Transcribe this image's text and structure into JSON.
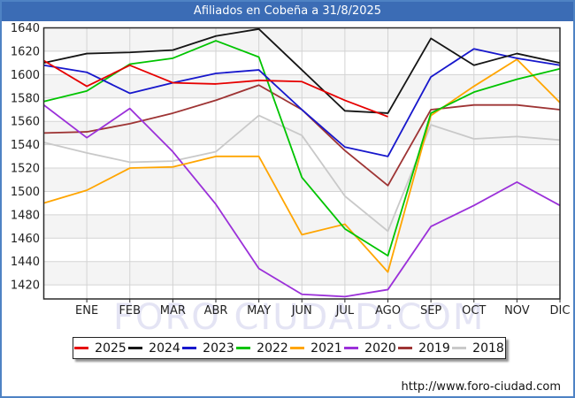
{
  "window": {
    "title": "Afiliados en Cobeña a 31/8/2025"
  },
  "watermark_text": "FORO CIUDAD.COM",
  "footer": {
    "url": "http://www.foro-ciudad.com"
  },
  "colors": {
    "frame_blue": "#4e82c4",
    "titlebar_blue": "#3b6cb5",
    "grid": "#d3d3d3",
    "band_shade": "#f4f4f4",
    "plot_border": "#2a2a2a",
    "axis_text": "#222222"
  },
  "chart_data": {
    "type": "line",
    "title": "Afiliados en Cobeña a 31/8/2025",
    "xlabel": "",
    "ylabel": "",
    "x_labels": [
      "ENE",
      "FEB",
      "MAR",
      "ABR",
      "MAY",
      "JUN",
      "JUL",
      "AGO",
      "SEP",
      "OCT",
      "NOV",
      "DIC"
    ],
    "points_note": "Each series has 13 values: the first is drawn at the left axis edge (pre-January), then the 12 labeled months. 2025 data ends at AGO (31/8/2025).",
    "y_axis": {
      "tick_min": 1420,
      "tick_max": 1640,
      "step": 20,
      "top_value": 1640,
      "bottom_value": 1408
    },
    "grid": true,
    "legend_position": "bottom",
    "series": [
      {
        "name": "2025",
        "color": "#e60000",
        "values": [
          1612,
          1590,
          1608,
          1593,
          1592,
          1595,
          1594,
          1578,
          1564,
          null,
          null,
          null,
          null
        ]
      },
      {
        "name": "2024",
        "color": "#151515",
        "values": [
          1610,
          1618,
          1619,
          1621,
          1633,
          1639,
          1604,
          1569,
          1567,
          1631,
          1608,
          1618,
          1610
        ]
      },
      {
        "name": "2023",
        "color": "#1717cc",
        "values": [
          1608,
          1602,
          1584,
          1593,
          1601,
          1604,
          1570,
          1538,
          1530,
          1598,
          1622,
          1614,
          1608
        ]
      },
      {
        "name": "2022",
        "color": "#00c400",
        "values": [
          1577,
          1586,
          1609,
          1614,
          1629,
          1615,
          1512,
          1468,
          1445,
          1567,
          1585,
          1596,
          1605
        ]
      },
      {
        "name": "2021",
        "color": "#ffa500",
        "values": [
          1490,
          1501,
          1520,
          1521,
          1530,
          1530,
          1463,
          1472,
          1431,
          1565,
          1590,
          1613,
          1576
        ]
      },
      {
        "name": "2020",
        "color": "#9b30d9",
        "values": [
          1574,
          1546,
          1571,
          1534,
          1489,
          1434,
          1412,
          1410,
          1416,
          1470,
          1488,
          1508,
          1488
        ]
      },
      {
        "name": "2019",
        "color": "#9e3434",
        "values": [
          1550,
          1551,
          1558,
          1567,
          1578,
          1591,
          1570,
          1535,
          1505,
          1570,
          1574,
          1574,
          1570
        ]
      },
      {
        "name": "2018",
        "color": "#c9c9c9",
        "values": [
          1542,
          1533,
          1525,
          1526,
          1534,
          1565,
          1548,
          1496,
          1466,
          1557,
          1545,
          1547,
          1544
        ]
      }
    ]
  }
}
